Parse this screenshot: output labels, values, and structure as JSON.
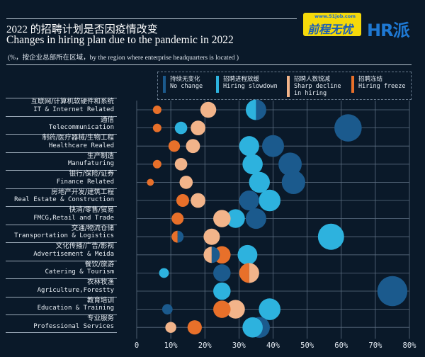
{
  "header": {
    "title_cn": "2022 的招聘计划是否因疫情改变",
    "title_en": "Changes in hiring plan  due to the pandemic in 2022",
    "subtitle": "(%，按企业总部所在区域，by the region where enterprise headquarters is located )"
  },
  "logos": {
    "job51_url": "www.51job.com",
    "job51_name": "前程无忧",
    "hr": "HR派"
  },
  "colors": {
    "background": "#0a1929",
    "grid": "#5d6f82"
  },
  "chart_data": {
    "type": "scatter",
    "subtype": "bubble",
    "xlabel": "",
    "ylabel": "",
    "xlim": [
      0,
      80
    ],
    "xticks": [
      "0",
      "10%",
      "20%",
      "30%",
      "40%",
      "50%",
      "60%",
      "70%",
      "80%"
    ],
    "grid": true,
    "legend_position": "top-right",
    "categories": [
      {
        "cn": "互联网/计算机软硬件和系统",
        "en": "IT & Internet Related"
      },
      {
        "cn": "通信",
        "en": "Telecommunication"
      },
      {
        "cn": "制药/医疗器械/生物工程",
        "en": "Healthcare Realed"
      },
      {
        "cn": "生产制造",
        "en": "Manufaturing"
      },
      {
        "cn": "银行/保险/证券",
        "en": "Finance Related"
      },
      {
        "cn": "房地产开发/建筑工程",
        "en": "Real Estate & Construction"
      },
      {
        "cn": "快消/零售/贸易",
        "en": "FMCG,Retail and Trade"
      },
      {
        "cn": "交通/物流仓储",
        "en": "Transportation & Logistics"
      },
      {
        "cn": "文化传播/广告/影视",
        "en": "Advertisement & Meida"
      },
      {
        "cn": "餐饮/旅游",
        "en": "Catering & Tourism"
      },
      {
        "cn": "农林牧渔",
        "en": "Agriculture,Forestty"
      },
      {
        "cn": "教育培训",
        "en": "Education & Training"
      },
      {
        "cn": "专业服务",
        "en": "Professional Services"
      }
    ],
    "series": [
      {
        "name_cn": "持续无变化",
        "name_en": "No change",
        "color": "#1b5a8d",
        "values": [
          35,
          62,
          40,
          45,
          46,
          33,
          35,
          12,
          22,
          25,
          75,
          9,
          36
        ]
      },
      {
        "name_cn": "招聘进程放缓",
        "name_en": "Hiring slowdown",
        "color": "#2db2de",
        "values": [
          35,
          13,
          33,
          34,
          36,
          39,
          29,
          57,
          32.5,
          8,
          25,
          39,
          34
        ]
      },
      {
        "name_cn": "招聘人数锐减",
        "name_en": "Sharp decline in hiring",
        "color": "#f2b48a",
        "values": [
          21,
          18,
          16.5,
          13,
          14.5,
          18,
          25,
          22,
          22,
          33,
          null,
          29,
          10
        ]
      },
      {
        "name_cn": "招聘冻结",
        "name_en": "Hiring freeze",
        "color": "#e8702a",
        "values": [
          6,
          6,
          11,
          6,
          4,
          13.5,
          12,
          12,
          25,
          33,
          null,
          25,
          17
        ]
      }
    ]
  }
}
